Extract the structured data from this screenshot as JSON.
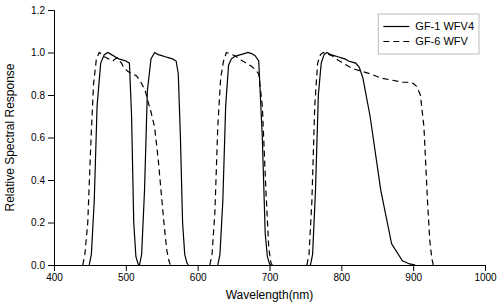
{
  "chart_data": {
    "type": "line",
    "xlabel": "Wavelength(nm)",
    "ylabel": "Relative Spectral Response",
    "xlim": [
      400,
      1000
    ],
    "ylim": [
      0,
      1.2
    ],
    "xticks": [
      400,
      500,
      600,
      700,
      800,
      900,
      1000
    ],
    "yticks": [
      {
        "value": 0,
        "label": "0.0"
      },
      0.2,
      0.4,
      0.6,
      0.8,
      {
        "value": 1.0,
        "label": "1.0"
      },
      1.2
    ],
    "grid": false,
    "legend": "upper right",
    "series": [
      {
        "name": "GF-1 WFV4",
        "color": "#000000",
        "line_style": "solid",
        "x": [
          449,
          452,
          456,
          460,
          465,
          470,
          475,
          480,
          485,
          490,
          495,
          500,
          505,
          508,
          511,
          514,
          517,
          519
        ],
        "values": [
          0.0,
          0.05,
          0.3,
          0.75,
          0.95,
          0.99,
          1.0,
          0.99,
          0.98,
          0.97,
          0.965,
          0.96,
          0.95,
          0.7,
          0.2,
          0.04,
          0.005,
          0.0
        ]
      },
      {
        "name": "GF-1 WFV4",
        "color": "#000000",
        "line_style": "solid",
        "x": [
          519,
          522,
          526,
          530,
          535,
          540,
          545,
          550,
          555,
          560,
          565,
          570,
          573,
          576,
          579,
          582,
          585,
          587
        ],
        "values": [
          0.0,
          0.05,
          0.35,
          0.82,
          0.97,
          1.0,
          0.99,
          0.985,
          0.98,
          0.975,
          0.97,
          0.96,
          0.9,
          0.6,
          0.2,
          0.05,
          0.01,
          0.0
        ]
      },
      {
        "name": "GF-1 WFV4",
        "color": "#000000",
        "line_style": "solid",
        "x": [
          628,
          631,
          635,
          639,
          643,
          647,
          651,
          655,
          660,
          665,
          670,
          675,
          680,
          685,
          690,
          694,
          697,
          700,
          702
        ],
        "values": [
          0.0,
          0.05,
          0.3,
          0.75,
          0.94,
          0.97,
          0.98,
          0.985,
          0.99,
          0.995,
          1.0,
          0.995,
          0.985,
          0.96,
          0.6,
          0.15,
          0.04,
          0.005,
          0.0
        ]
      },
      {
        "name": "GF-1 WFV4",
        "color": "#000000",
        "line_style": "solid",
        "x": [
          757,
          760,
          764,
          768,
          772,
          776,
          780,
          785,
          790,
          795,
          800,
          805,
          810,
          815,
          820,
          825,
          830,
          840,
          855,
          870,
          885,
          895,
          900,
          903
        ],
        "values": [
          0.0,
          0.05,
          0.35,
          0.8,
          0.95,
          0.99,
          1.0,
          0.99,
          0.985,
          0.98,
          0.975,
          0.97,
          0.96,
          0.955,
          0.95,
          0.93,
          0.88,
          0.7,
          0.35,
          0.1,
          0.02,
          0.005,
          0.002,
          0.0
        ]
      },
      {
        "name": "GF-6 WFV",
        "color": "#000000",
        "line_style": "dashed",
        "x": [
          440,
          443,
          447,
          451,
          455,
          459,
          463,
          467,
          470,
          473,
          476,
          479,
          482,
          485,
          488,
          491,
          494,
          497,
          500,
          503,
          506,
          509,
          512,
          515,
          518,
          521,
          524,
          527,
          530,
          535,
          540,
          545,
          549,
          553,
          557,
          560,
          562
        ],
        "values": [
          0.0,
          0.05,
          0.2,
          0.55,
          0.85,
          0.97,
          1.0,
          0.99,
          0.98,
          0.975,
          0.97,
          0.965,
          0.96,
          0.97,
          0.975,
          0.96,
          0.95,
          0.93,
          0.92,
          0.91,
          0.905,
          0.9,
          0.895,
          0.89,
          0.875,
          0.86,
          0.84,
          0.82,
          0.78,
          0.72,
          0.65,
          0.5,
          0.35,
          0.2,
          0.07,
          0.02,
          0.0
        ]
      },
      {
        "name": "GF-6 WFV",
        "color": "#000000",
        "line_style": "dashed",
        "x": [
          617,
          620,
          624,
          628,
          632,
          636,
          640,
          644,
          648,
          652,
          656,
          660,
          665,
          670,
          675,
          680,
          685,
          690,
          695,
          699,
          702,
          704
        ],
        "values": [
          0.0,
          0.05,
          0.25,
          0.65,
          0.88,
          0.96,
          1.0,
          0.995,
          0.99,
          0.985,
          0.975,
          0.965,
          0.955,
          0.945,
          0.935,
          0.92,
          0.9,
          0.75,
          0.35,
          0.08,
          0.01,
          0.0
        ]
      },
      {
        "name": "GF-6 WFV",
        "color": "#000000",
        "line_style": "dashed",
        "x": [
          752,
          755,
          759,
          763,
          767,
          771,
          775,
          779,
          783,
          787,
          791,
          795,
          800,
          805,
          810,
          815,
          820,
          825,
          830,
          840,
          855,
          870,
          885,
          895,
          900,
          905,
          910,
          915,
          920,
          923,
          926,
          928
        ],
        "values": [
          0.0,
          0.05,
          0.3,
          0.75,
          0.95,
          0.99,
          1.0,
          0.995,
          0.99,
          0.985,
          0.975,
          0.965,
          0.955,
          0.945,
          0.935,
          0.925,
          0.92,
          0.915,
          0.91,
          0.9,
          0.88,
          0.87,
          0.86,
          0.86,
          0.855,
          0.84,
          0.8,
          0.65,
          0.3,
          0.12,
          0.03,
          0.0
        ]
      }
    ]
  }
}
